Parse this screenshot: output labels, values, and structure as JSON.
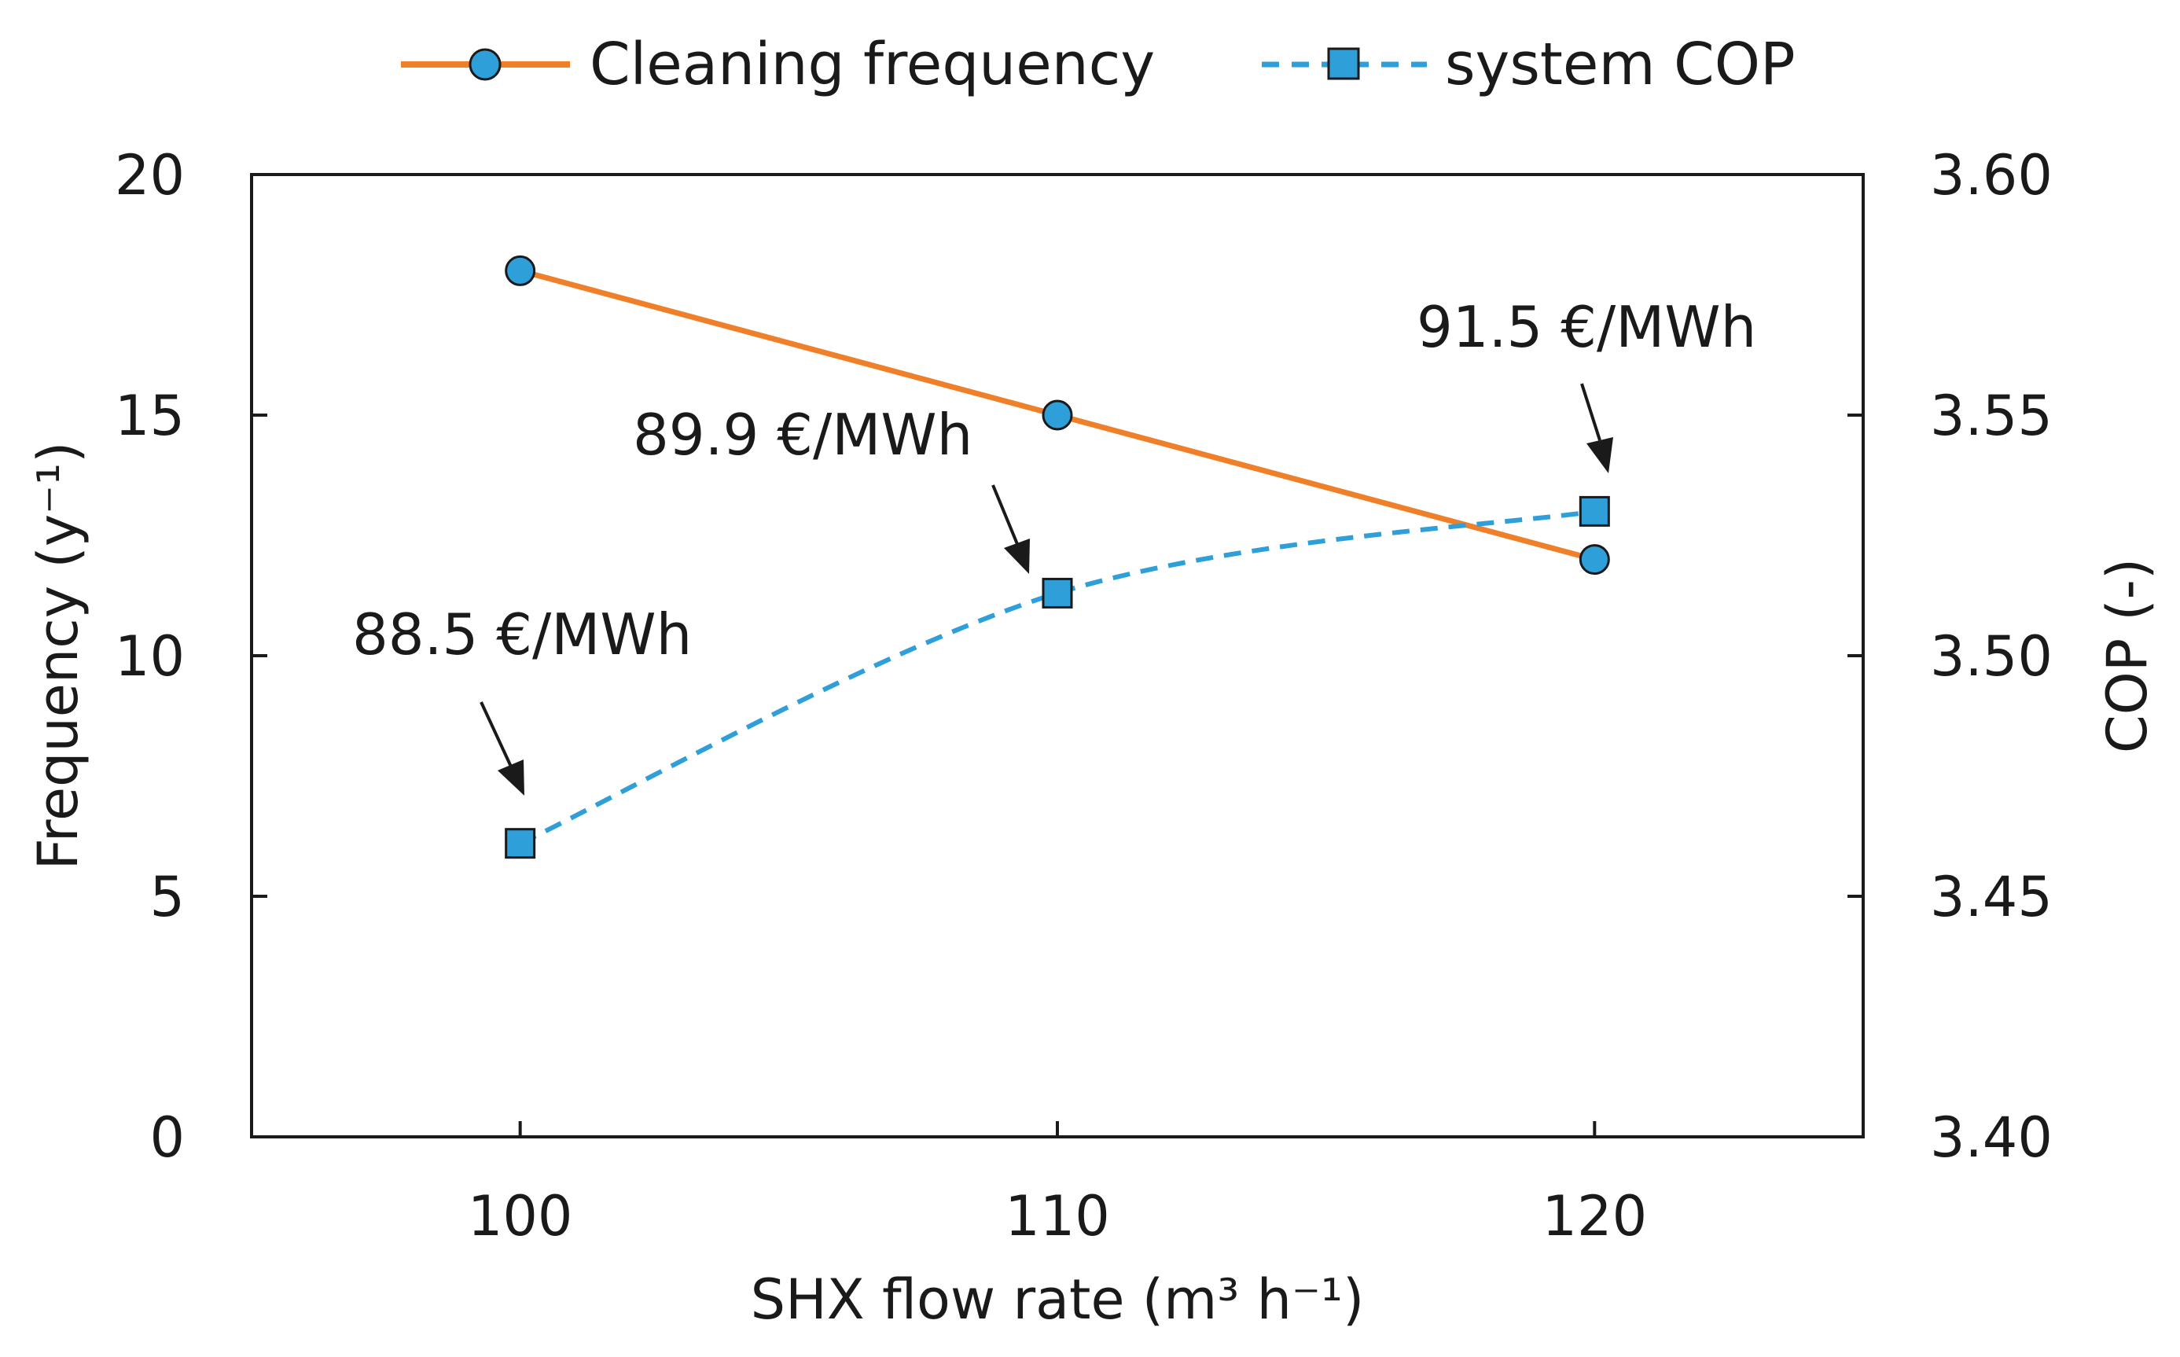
{
  "chart_data": {
    "type": "line",
    "title": "",
    "xlabel": "SHX flow rate (m³ h⁻¹)",
    "ylabel": "Frequency (y⁻¹)",
    "y2label": "COP (-)",
    "x": [
      100,
      110,
      120
    ],
    "xlim": [
      95,
      125
    ],
    "ylim": [
      0,
      20
    ],
    "y2lim": [
      3.4,
      3.6
    ],
    "xticks": [
      "100",
      "110",
      "120"
    ],
    "yticks": [
      "0",
      "5",
      "10",
      "15",
      "20"
    ],
    "y2ticks": [
      "3.40",
      "3.45",
      "3.50",
      "3.55",
      "3.60"
    ],
    "grid": false,
    "legend_position": "top",
    "series": [
      {
        "name": "Cleaning frequency",
        "axis": "left",
        "values": [
          18,
          15,
          12
        ],
        "color": "#f07f2a",
        "marker": "circle",
        "marker_color": "#2e9fd9",
        "line_style": "solid"
      },
      {
        "name": "system COP",
        "axis": "right",
        "values": [
          3.461,
          3.513,
          3.53
        ],
        "color": "#2e9fd9",
        "marker": "square",
        "marker_color": "#2e9fd9",
        "line_style": "dashed"
      }
    ],
    "annotations": [
      {
        "text": "88.5 €/MWh",
        "x": 100,
        "series": "system COP"
      },
      {
        "text": "89.9 €/MWh",
        "x": 110,
        "series": "system COP"
      },
      {
        "text": "91.5 €/MWh",
        "x": 120,
        "series": "system COP"
      }
    ]
  }
}
